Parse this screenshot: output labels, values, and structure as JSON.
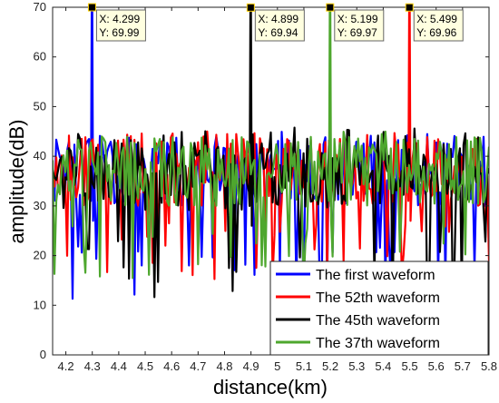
{
  "chart_data": {
    "type": "line",
    "xlabel": "distance(km)",
    "ylabel": "amplitude(dB)",
    "xlim": [
      4.15,
      5.8
    ],
    "ylim": [
      0,
      70
    ],
    "xticks": [
      "4.2",
      "4.3",
      "4.4",
      "4.5",
      "4.6",
      "4.7",
      "4.8",
      "4.9",
      "5",
      "5.1",
      "5.2",
      "5.3",
      "5.4",
      "5.5",
      "5.6",
      "5.7",
      "5.8"
    ],
    "yticks": [
      "0",
      "10",
      "20",
      "30",
      "40",
      "50",
      "60",
      "70"
    ],
    "grid": false,
    "legend_position": "bottom-right",
    "series": [
      {
        "name": "The first waveform",
        "color": "#0000ff",
        "peak_x": 4.299,
        "peak_y": 69.99,
        "noise_level_db": 37,
        "noise_min_db": 11,
        "noise_max_db": 45
      },
      {
        "name": "The 52th waveform",
        "color": "#ff0000",
        "peak_x": 5.499,
        "peak_y": 69.96,
        "noise_level_db": 37,
        "noise_min_db": 15,
        "noise_max_db": 45
      },
      {
        "name": "The 45th waveform",
        "color": "#000000",
        "peak_x": 4.899,
        "peak_y": 69.94,
        "noise_level_db": 36,
        "noise_min_db": 11,
        "noise_max_db": 46
      },
      {
        "name": "The 37th waveform",
        "color": "#4ea72e",
        "peak_x": 5.199,
        "peak_y": 69.97,
        "noise_level_db": 37,
        "noise_min_db": 14,
        "noise_max_db": 45
      }
    ],
    "annotations": [
      {
        "x_text": "X: 4.299",
        "y_text": "Y: 69.99",
        "x": 4.299,
        "y": 69.99
      },
      {
        "x_text": "X: 4.899",
        "y_text": "Y: 69.94",
        "x": 4.899,
        "y": 69.94
      },
      {
        "x_text": "X: 5.199",
        "y_text": "Y: 69.97",
        "x": 5.199,
        "y": 69.97
      },
      {
        "x_text": "X: 5.499",
        "y_text": "Y: 69.96",
        "x": 5.499,
        "y": 69.96
      }
    ]
  }
}
